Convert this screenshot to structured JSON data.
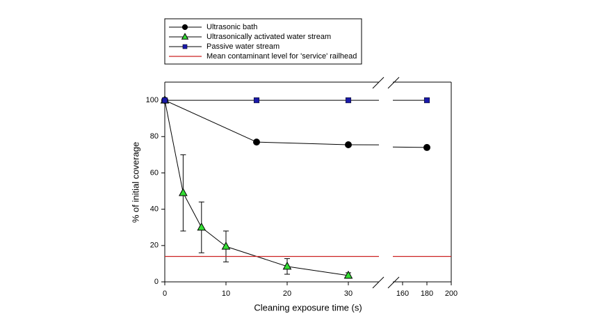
{
  "chart_data": {
    "type": "line",
    "x_label": "Cleaning exposure time (s)",
    "y_label": "% of initial coverage",
    "xlim": [
      0,
      200
    ],
    "x_break": [
      35,
      152
    ],
    "xticks": [
      0,
      10,
      20,
      30,
      160,
      180,
      200
    ],
    "ylim": [
      0,
      110
    ],
    "yticks": [
      0,
      20,
      40,
      60,
      80,
      100
    ],
    "series": [
      {
        "name": "Ultrasonic bath",
        "color": "#000000",
        "marker": "circle",
        "x": [
          0,
          15,
          30,
          180
        ],
        "values": [
          100,
          77,
          75.5,
          74
        ]
      },
      {
        "name": "Ultrasonically activated water stream",
        "color": "#33dd33",
        "marker": "triangle",
        "x": [
          0,
          3,
          6,
          10,
          20,
          30
        ],
        "values": [
          100,
          49,
          30,
          19.5,
          8.5,
          3.5
        ],
        "errors": [
          0,
          21,
          14,
          8.5,
          4.3,
          1.5
        ]
      },
      {
        "name": "Passive water stream",
        "color": "#1a1aaa",
        "marker": "square",
        "x": [
          0,
          15,
          30,
          180
        ],
        "values": [
          100,
          100,
          100,
          100
        ]
      },
      {
        "name": "Mean contaminant level for 'service' railhead",
        "color": "#cc2222",
        "marker": "hline",
        "values": [
          14
        ]
      }
    ]
  }
}
